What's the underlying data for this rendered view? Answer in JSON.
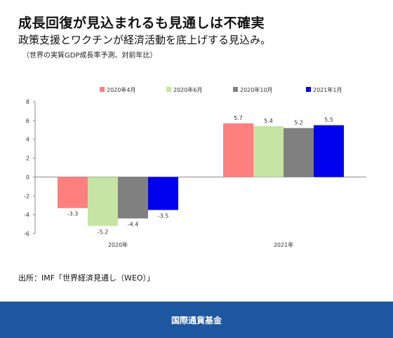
{
  "header": {
    "title": "成長回復が見込まれるも見通しは不確実",
    "subtitle": "政策支援とワクチンが経済活動を底上げする見込み。",
    "note": "（世界の実質GDP成長率予測、対前年比）"
  },
  "source": "出所：IMF「世界経済見通し（WEO）」",
  "footer": {
    "org": "国際通貨基金",
    "bg": "#1d57a0"
  },
  "chart_data": {
    "type": "bar",
    "categories": [
      "2020年",
      "2021年"
    ],
    "series": [
      {
        "name": "2020年4月",
        "color": "#ff7f7f",
        "values": [
          -3.3,
          5.7
        ]
      },
      {
        "name": "2020年6月",
        "color": "#c6e4a4",
        "values": [
          -5.2,
          5.4
        ]
      },
      {
        "name": "2020年10月",
        "color": "#808080",
        "values": [
          -4.4,
          5.2
        ]
      },
      {
        "name": "2021年1月",
        "color": "#0000ee",
        "values": [
          -3.5,
          5.5
        ]
      }
    ],
    "ylim": [
      -6,
      8
    ],
    "yticks": [
      -6,
      -4,
      -2,
      0,
      2,
      4,
      6,
      8
    ],
    "legend": "top",
    "grid": false
  }
}
